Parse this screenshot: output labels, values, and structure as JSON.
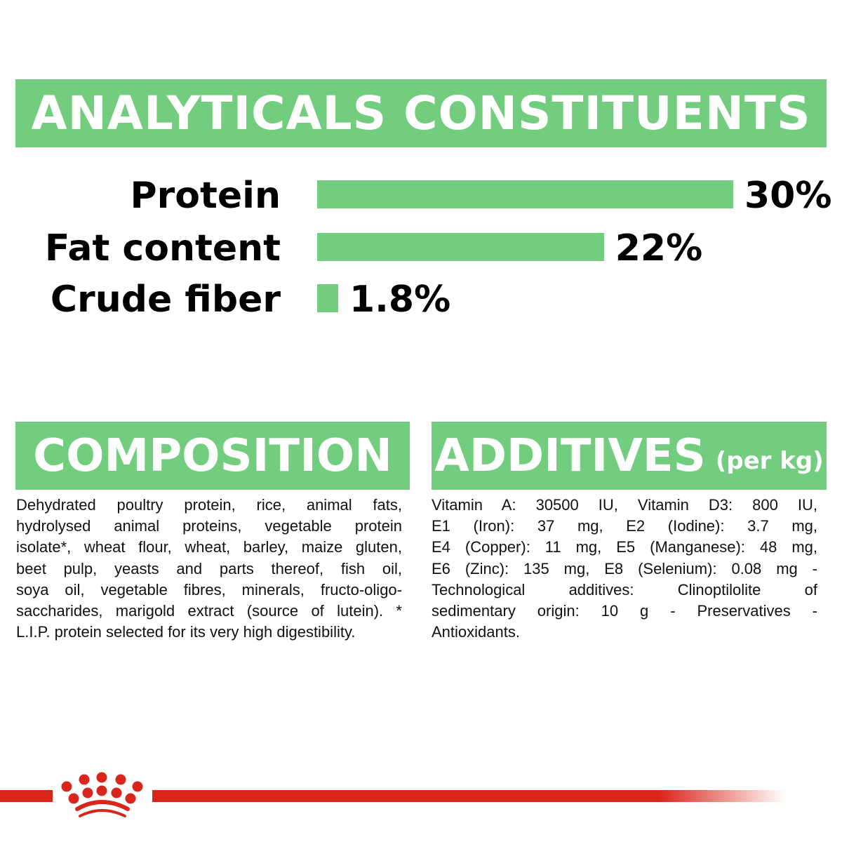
{
  "header": {
    "title": "ANALYTICALS CONSTITUENTS"
  },
  "constituents": [
    {
      "label": "Protein",
      "value": 30,
      "display": "30%"
    },
    {
      "label": "Fat content",
      "value": 22,
      "display": "22%"
    },
    {
      "label": "Crude fiber",
      "value": 1.8,
      "display": "1.8%"
    }
  ],
  "composition": {
    "title": "COMPOSITION",
    "lines": [
      "Dehydrated poultry protein, rice, animal fats,",
      "hydrolysed animal proteins, vegetable protein",
      "isolate*, wheat flour, wheat, barley, maize gluten,",
      "beet pulp, yeasts and parts thereof, fish oil,",
      "soya oil, vegetable fibres, minerals, fructo-oligo-",
      "saccharides, marigold extract (source of lutein). *",
      "L.I.P. protein selected for its very high digestibility."
    ]
  },
  "additives": {
    "title": "ADDITIVES",
    "subtitle": "(per kg)",
    "lines": [
      "Vitamin A: 30500 IU, Vitamin D3: 800 IU,",
      "E1 (Iron): 37 mg, E2 (Iodine): 3.7 mg,",
      "E4 (Copper): 11 mg, E5 (Manganese): 48 mg,",
      "E6 (Zinc): 135 mg, E8 (Selenium): 0.08 mg -",
      "Technological additives: Clinoptilolite of",
      "sedimentary origin: 10 g - Preservatives -",
      "Antioxidants."
    ]
  },
  "colors": {
    "accent": "#73cd7e",
    "brand": "#d9261c"
  },
  "footer": {
    "logo": "royal-canin-crown"
  }
}
